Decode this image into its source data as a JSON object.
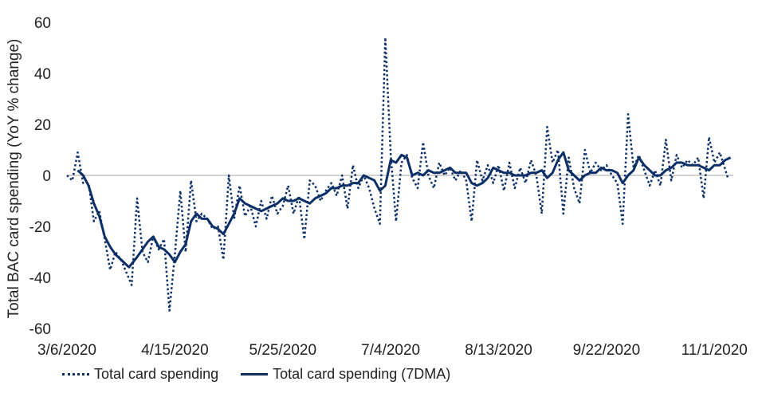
{
  "chart_data": {
    "type": "line",
    "title": "",
    "xlabel": "",
    "ylabel": "Total BAC card spending (YoY % change)",
    "ylim": [
      -60,
      60
    ],
    "yticks": [
      60,
      40,
      20,
      0,
      -20,
      -40,
      -60
    ],
    "y_tick_labels": [
      "60",
      "40",
      "20",
      "0",
      "-20",
      "-40",
      "-60"
    ],
    "x_tick_labels": [
      "3/6/2020",
      "4/15/2020",
      "5/25/2020",
      "7/4/2020",
      "8/13/2020",
      "9/22/2020",
      "11/1/2020"
    ],
    "x_start": "3/6/2020",
    "x_end": "11/8/2020",
    "zero_line": true,
    "grid": false,
    "legend_position": "bottom",
    "colors": {
      "series": "#0b2f66",
      "zero_line": "#a6a6a6",
      "text": "#222222"
    },
    "series": [
      {
        "name": "Total card spending",
        "style": "dotted",
        "points": [
          [
            "3/6/2020",
            0
          ],
          [
            "3/8/2020",
            -2
          ],
          [
            "3/10/2020",
            9
          ],
          [
            "3/12/2020",
            -3
          ],
          [
            "3/14/2020",
            -3
          ],
          [
            "3/16/2020",
            -18
          ],
          [
            "3/18/2020",
            -14
          ],
          [
            "3/20/2020",
            -25
          ],
          [
            "3/22/2020",
            -37
          ],
          [
            "3/24/2020",
            -30
          ],
          [
            "3/26/2020",
            -33
          ],
          [
            "3/28/2020",
            -38
          ],
          [
            "3/30/2020",
            -43
          ],
          [
            "4/1/2020",
            -9
          ],
          [
            "4/3/2020",
            -30
          ],
          [
            "4/5/2020",
            -34
          ],
          [
            "4/7/2020",
            -24
          ],
          [
            "4/9/2020",
            -29
          ],
          [
            "4/11/2020",
            -25
          ],
          [
            "4/13/2020",
            -53
          ],
          [
            "4/15/2020",
            -31
          ],
          [
            "4/17/2020",
            -6
          ],
          [
            "4/19/2020",
            -30
          ],
          [
            "4/21/2020",
            -2
          ],
          [
            "4/23/2020",
            -18
          ],
          [
            "4/25/2020",
            -15
          ],
          [
            "4/27/2020",
            -17
          ],
          [
            "4/29/2020",
            -21
          ],
          [
            "5/1/2020",
            -20
          ],
          [
            "5/3/2020",
            -33
          ],
          [
            "5/5/2020",
            0
          ],
          [
            "5/7/2020",
            -17
          ],
          [
            "5/9/2020",
            -4
          ],
          [
            "5/11/2020",
            -16
          ],
          [
            "5/13/2020",
            -12
          ],
          [
            "5/15/2020",
            -20
          ],
          [
            "5/17/2020",
            -10
          ],
          [
            "5/19/2020",
            -17
          ],
          [
            "5/21/2020",
            -8
          ],
          [
            "5/23/2020",
            -15
          ],
          [
            "5/25/2020",
            -12
          ],
          [
            "5/27/2020",
            -4
          ],
          [
            "5/29/2020",
            -15
          ],
          [
            "5/31/2020",
            -8
          ],
          [
            "6/2/2020",
            -25
          ],
          [
            "6/4/2020",
            -2
          ],
          [
            "6/6/2020",
            -4
          ],
          [
            "6/8/2020",
            -10
          ],
          [
            "6/10/2020",
            -6
          ],
          [
            "6/12/2020",
            -3
          ],
          [
            "6/14/2020",
            -8
          ],
          [
            "6/16/2020",
            0
          ],
          [
            "6/18/2020",
            -13
          ],
          [
            "6/20/2020",
            4
          ],
          [
            "6/22/2020",
            -5
          ],
          [
            "6/24/2020",
            0
          ],
          [
            "6/26/2020",
            -5
          ],
          [
            "6/28/2020",
            -13
          ],
          [
            "6/30/2020",
            -19
          ],
          [
            "7/2/2020",
            54
          ],
          [
            "7/4/2020",
            8
          ],
          [
            "7/6/2020",
            -18
          ],
          [
            "7/8/2020",
            5
          ],
          [
            "7/10/2020",
            8
          ],
          [
            "7/12/2020",
            -1
          ],
          [
            "7/14/2020",
            -5
          ],
          [
            "7/16/2020",
            13
          ],
          [
            "7/18/2020",
            0
          ],
          [
            "7/20/2020",
            -5
          ],
          [
            "7/22/2020",
            5
          ],
          [
            "7/24/2020",
            0
          ],
          [
            "7/26/2020",
            3
          ],
          [
            "7/28/2020",
            -2
          ],
          [
            "7/30/2020",
            2
          ],
          [
            "8/1/2020",
            -2
          ],
          [
            "8/3/2020",
            -18
          ],
          [
            "8/5/2020",
            6
          ],
          [
            "8/7/2020",
            -2
          ],
          [
            "8/9/2020",
            4
          ],
          [
            "8/11/2020",
            -3
          ],
          [
            "8/13/2020",
            4
          ],
          [
            "8/15/2020",
            -6
          ],
          [
            "8/17/2020",
            5
          ],
          [
            "8/19/2020",
            -5
          ],
          [
            "8/21/2020",
            3
          ],
          [
            "8/23/2020",
            -3
          ],
          [
            "8/25/2020",
            6
          ],
          [
            "8/27/2020",
            0
          ],
          [
            "8/29/2020",
            -15
          ],
          [
            "8/31/2020",
            19
          ],
          [
            "9/2/2020",
            5
          ],
          [
            "9/4/2020",
            10
          ],
          [
            "9/6/2020",
            -15
          ],
          [
            "9/8/2020",
            7
          ],
          [
            "9/10/2020",
            -5
          ],
          [
            "9/12/2020",
            -11
          ],
          [
            "9/14/2020",
            10
          ],
          [
            "9/16/2020",
            1
          ],
          [
            "9/18/2020",
            5
          ],
          [
            "9/20/2020",
            2
          ],
          [
            "9/22/2020",
            4
          ],
          [
            "9/24/2020",
            0
          ],
          [
            "9/26/2020",
            -3
          ],
          [
            "9/28/2020",
            -19
          ],
          [
            "9/30/2020",
            24
          ],
          [
            "10/2/2020",
            3
          ],
          [
            "10/4/2020",
            8
          ],
          [
            "10/6/2020",
            2
          ],
          [
            "10/8/2020",
            -4
          ],
          [
            "10/10/2020",
            2
          ],
          [
            "10/12/2020",
            -4
          ],
          [
            "10/14/2020",
            14
          ],
          [
            "10/16/2020",
            -2
          ],
          [
            "10/18/2020",
            8
          ],
          [
            "10/20/2020",
            3
          ],
          [
            "10/22/2020",
            6
          ],
          [
            "10/24/2020",
            4
          ],
          [
            "10/26/2020",
            7
          ],
          [
            "10/28/2020",
            -9
          ],
          [
            "10/30/2020",
            15
          ],
          [
            "11/1/2020",
            5
          ],
          [
            "11/3/2020",
            9
          ],
          [
            "11/6/2020",
            -1
          ]
        ]
      },
      {
        "name": "Total card spending (7DMA)",
        "style": "solid",
        "points": [
          [
            "3/10/2020",
            2
          ],
          [
            "3/12/2020",
            0
          ],
          [
            "3/14/2020",
            -4
          ],
          [
            "3/16/2020",
            -11
          ],
          [
            "3/18/2020",
            -16
          ],
          [
            "3/20/2020",
            -24
          ],
          [
            "3/22/2020",
            -28
          ],
          [
            "3/24/2020",
            -31
          ],
          [
            "3/26/2020",
            -33
          ],
          [
            "3/28/2020",
            -35
          ],
          [
            "3/29/2020",
            -36
          ],
          [
            "4/1/2020",
            -32
          ],
          [
            "4/3/2020",
            -29
          ],
          [
            "4/5/2020",
            -26
          ],
          [
            "4/7/2020",
            -24
          ],
          [
            "4/9/2020",
            -28
          ],
          [
            "4/11/2020",
            -29
          ],
          [
            "4/13/2020",
            -31
          ],
          [
            "4/15/2020",
            -34
          ],
          [
            "4/17/2020",
            -30
          ],
          [
            "4/19/2020",
            -27
          ],
          [
            "4/21/2020",
            -18
          ],
          [
            "4/23/2020",
            -15
          ],
          [
            "4/25/2020",
            -17
          ],
          [
            "4/27/2020",
            -17
          ],
          [
            "4/29/2020",
            -20
          ],
          [
            "5/1/2020",
            -21
          ],
          [
            "5/3/2020",
            -23
          ],
          [
            "5/5/2020",
            -19
          ],
          [
            "5/7/2020",
            -15
          ],
          [
            "5/9/2020",
            -9
          ],
          [
            "5/11/2020",
            -11
          ],
          [
            "5/13/2020",
            -12
          ],
          [
            "5/15/2020",
            -13
          ],
          [
            "5/17/2020",
            -14
          ],
          [
            "5/19/2020",
            -13
          ],
          [
            "5/21/2020",
            -12
          ],
          [
            "5/23/2020",
            -11
          ],
          [
            "5/25/2020",
            -9
          ],
          [
            "5/27/2020",
            -10
          ],
          [
            "5/29/2020",
            -10
          ],
          [
            "5/31/2020",
            -9
          ],
          [
            "6/2/2020",
            -10
          ],
          [
            "6/4/2020",
            -11
          ],
          [
            "6/6/2020",
            -9
          ],
          [
            "6/8/2020",
            -8
          ],
          [
            "6/10/2020",
            -7
          ],
          [
            "6/12/2020",
            -5
          ],
          [
            "6/14/2020",
            -5
          ],
          [
            "6/16/2020",
            -4
          ],
          [
            "6/18/2020",
            -4
          ],
          [
            "6/20/2020",
            -3
          ],
          [
            "6/22/2020",
            -3
          ],
          [
            "6/24/2020",
            0
          ],
          [
            "6/26/2020",
            -1
          ],
          [
            "6/28/2020",
            -2
          ],
          [
            "6/30/2020",
            -6
          ],
          [
            "7/2/2020",
            -4
          ],
          [
            "7/4/2020",
            6
          ],
          [
            "7/6/2020",
            5
          ],
          [
            "7/8/2020",
            8
          ],
          [
            "7/10/2020",
            7
          ],
          [
            "7/12/2020",
            0
          ],
          [
            "7/14/2020",
            1
          ],
          [
            "7/16/2020",
            0
          ],
          [
            "7/18/2020",
            2
          ],
          [
            "7/20/2020",
            1
          ],
          [
            "7/22/2020",
            1
          ],
          [
            "7/24/2020",
            2
          ],
          [
            "7/26/2020",
            3
          ],
          [
            "7/28/2020",
            1
          ],
          [
            "7/30/2020",
            1
          ],
          [
            "8/1/2020",
            1
          ],
          [
            "8/3/2020",
            -3
          ],
          [
            "8/5/2020",
            -4
          ],
          [
            "8/7/2020",
            -3
          ],
          [
            "8/9/2020",
            -1
          ],
          [
            "8/11/2020",
            3
          ],
          [
            "8/13/2020",
            2
          ],
          [
            "8/15/2020",
            1
          ],
          [
            "8/17/2020",
            1
          ],
          [
            "8/19/2020",
            0
          ],
          [
            "8/21/2020",
            0
          ],
          [
            "8/23/2020",
            0
          ],
          [
            "8/25/2020",
            1
          ],
          [
            "8/27/2020",
            1
          ],
          [
            "8/29/2020",
            2
          ],
          [
            "8/31/2020",
            -1
          ],
          [
            "9/2/2020",
            1
          ],
          [
            "9/4/2020",
            6
          ],
          [
            "9/6/2020",
            9
          ],
          [
            "9/8/2020",
            2
          ],
          [
            "9/10/2020",
            0
          ],
          [
            "9/12/2020",
            -2
          ],
          [
            "9/14/2020",
            0
          ],
          [
            "9/16/2020",
            1
          ],
          [
            "9/18/2020",
            1
          ],
          [
            "9/20/2020",
            3
          ],
          [
            "9/22/2020",
            2
          ],
          [
            "9/24/2020",
            2
          ],
          [
            "9/26/2020",
            1
          ],
          [
            "9/28/2020",
            -3
          ],
          [
            "9/30/2020",
            0
          ],
          [
            "10/2/2020",
            2
          ],
          [
            "10/4/2020",
            7
          ],
          [
            "10/6/2020",
            4
          ],
          [
            "10/8/2020",
            2
          ],
          [
            "10/10/2020",
            0
          ],
          [
            "10/12/2020",
            0
          ],
          [
            "10/14/2020",
            2
          ],
          [
            "10/16/2020",
            3
          ],
          [
            "10/18/2020",
            5
          ],
          [
            "10/20/2020",
            5
          ],
          [
            "10/22/2020",
            4
          ],
          [
            "10/24/2020",
            4
          ],
          [
            "10/26/2020",
            4
          ],
          [
            "10/28/2020",
            3
          ],
          [
            "10/30/2020",
            2
          ],
          [
            "11/1/2020",
            4
          ],
          [
            "11/3/2020",
            4
          ],
          [
            "11/5/2020",
            6
          ],
          [
            "11/7/2020",
            7
          ]
        ]
      }
    ]
  }
}
